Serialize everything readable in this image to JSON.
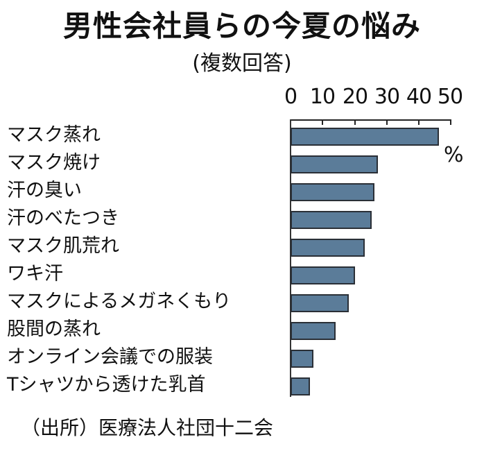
{
  "header": {
    "title": "男性会社員らの今夏の悩み",
    "subtitle": "(複数回答)"
  },
  "unit_label": "%",
  "source": "（出所）医療法人社団十二会",
  "axis": {
    "ticks": [
      "0",
      "10",
      "20",
      "30",
      "40",
      "50"
    ]
  },
  "categories": [
    {
      "label": "マスク蒸れ",
      "value": 46
    },
    {
      "label": "マスク焼け",
      "value": 27
    },
    {
      "label": "汗の臭い",
      "value": 26
    },
    {
      "label": "汗のべたつき",
      "value": 25
    },
    {
      "label": "マスク肌荒れ",
      "value": 23
    },
    {
      "label": "ワキ汗",
      "value": 20
    },
    {
      "label": "マスクによるメガネくもり",
      "value": 18
    },
    {
      "label": "股間の蒸れ",
      "value": 14
    },
    {
      "label": "オンライン会議での服装",
      "value": 7
    },
    {
      "label": "Tシャツから透けた乳首",
      "value": 6
    }
  ],
  "colors": {
    "bar_fill": "#5b7c99",
    "bar_border": "#2a2f36"
  },
  "chart_data": {
    "type": "bar",
    "orientation": "horizontal",
    "title": "男性会社員らの今夏の悩み",
    "subtitle": "(複数回答)",
    "categories": [
      "マスク蒸れ",
      "マスク焼け",
      "汗の臭い",
      "汗のべたつき",
      "マスク肌荒れ",
      "ワキ汗",
      "マスクによるメガネくもり",
      "股間の蒸れ",
      "オンライン会議での服装",
      "Tシャツから透けた乳首"
    ],
    "values": [
      46,
      27,
      26,
      25,
      23,
      20,
      18,
      14,
      7,
      6
    ],
    "xlabel": "%",
    "ylabel": "",
    "xlim": [
      0,
      50
    ],
    "xticks": [
      0,
      10,
      20,
      30,
      40,
      50
    ],
    "axis_position": "top",
    "grid": false,
    "legend": null,
    "source": "（出所）医療法人社団十二会"
  }
}
